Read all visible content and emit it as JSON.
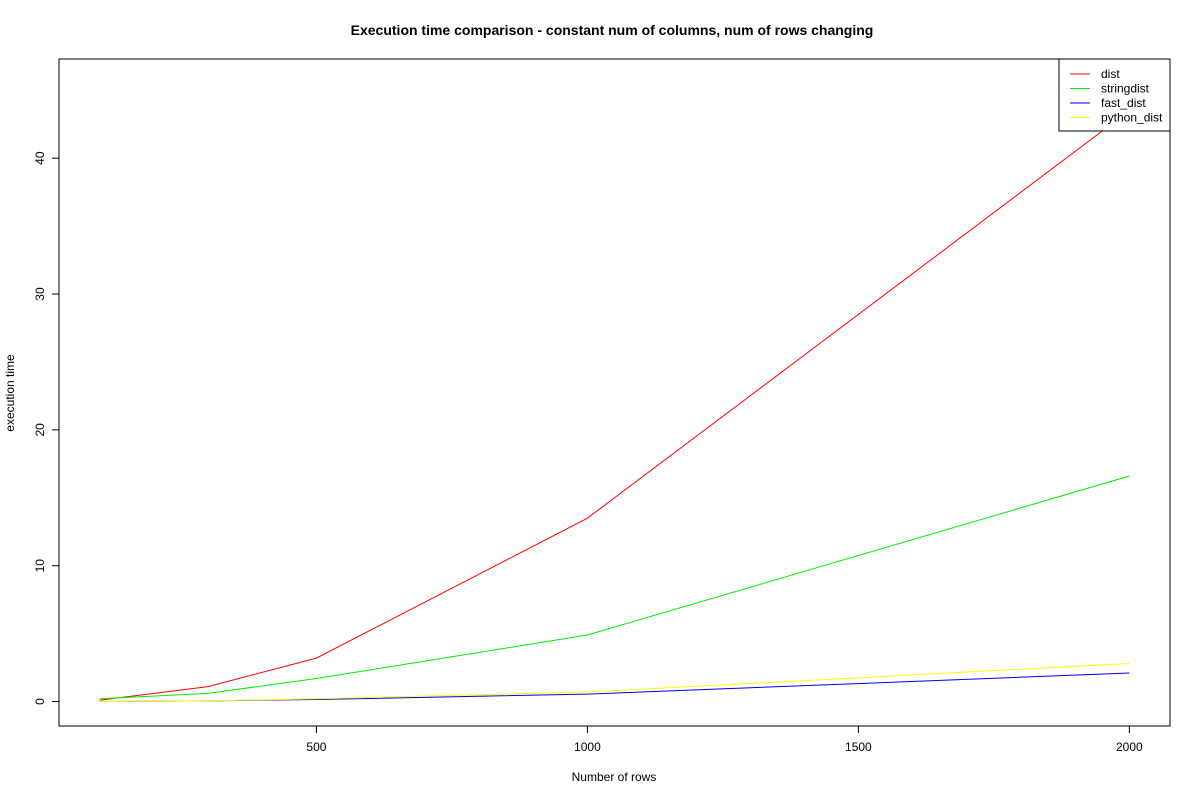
{
  "chart_data": {
    "type": "line",
    "title": "Execution time comparison - constant num of columns, num of rows changing",
    "xlabel": "Number of rows",
    "ylabel": "execution time",
    "x": [
      100,
      300,
      500,
      1000,
      2000
    ],
    "xlim": [
      25,
      2075
    ],
    "ylim": [
      -1.8,
      47.3
    ],
    "xticks": [
      500,
      1000,
      1500,
      2000
    ],
    "yticks": [
      0,
      10,
      20,
      30,
      40
    ],
    "grid": false,
    "legend_position": "top-right",
    "series": [
      {
        "name": "dist",
        "color": "#ff0000",
        "values": [
          0.1,
          1.1,
          3.2,
          13.5,
          43.5
        ]
      },
      {
        "name": "stringdist",
        "color": "#00ee00",
        "values": [
          0.2,
          0.6,
          1.7,
          4.9,
          16.6
        ]
      },
      {
        "name": "fast_dist",
        "color": "#0000ff",
        "values": [
          0.0,
          0.05,
          0.15,
          0.55,
          2.1
        ]
      },
      {
        "name": "python_dist",
        "color": "#ffff00",
        "values": [
          0.0,
          0.05,
          0.2,
          0.7,
          2.8
        ]
      }
    ]
  }
}
